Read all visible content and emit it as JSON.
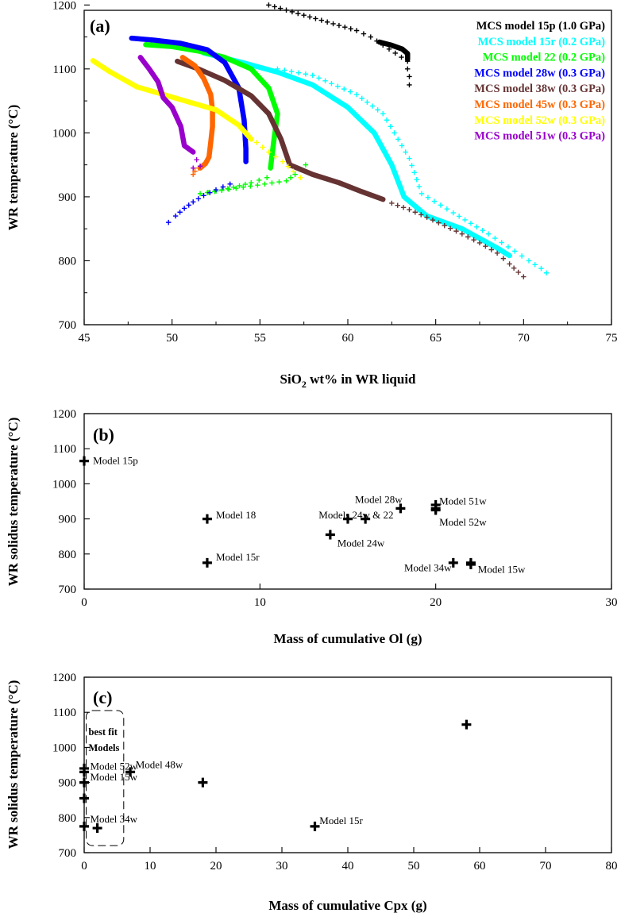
{
  "chart_data": [
    {
      "panel": "(a)",
      "type": "line",
      "xlabel_main": "SiO",
      "xlabel_sub": "2",
      "xlabel_rest": " wt% in WR liquid",
      "ylabel": "WR temperature (°C)",
      "xlim": [
        45,
        75
      ],
      "ylim": [
        700,
        1250
      ],
      "xticks": [
        45,
        50,
        55,
        60,
        65,
        70,
        75
      ],
      "yticks": [
        700,
        800,
        900,
        1000,
        1100,
        1200
      ],
      "legend_position": "top-right",
      "series": [
        {
          "name": "MCS model 15p (1.0 GPa)",
          "color": "#000000",
          "solid": [
            [
              61.8,
              1142
            ],
            [
              62.5,
              1137
            ],
            [
              63.1,
              1131
            ],
            [
              63.4,
              1124
            ],
            [
              63.4,
              1115
            ]
          ],
          "crosses": [
            [
              55.5,
              1200
            ],
            [
              56.5,
              1192
            ],
            [
              57.5,
              1184
            ],
            [
              58.5,
              1176
            ],
            [
              59.5,
              1168
            ],
            [
              60.5,
              1160
            ],
            [
              61.3,
              1150
            ],
            [
              63.4,
              1112
            ],
            [
              63.4,
              1100
            ],
            [
              63.5,
              1088
            ],
            [
              63.5,
              1075
            ]
          ]
        },
        {
          "name": "MCS model 15r (0.2 GPa)",
          "color": "#00ffff",
          "solid": [
            [
              51.8,
              1125
            ],
            [
              54,
              1110
            ],
            [
              56,
              1095
            ],
            [
              58,
              1075
            ],
            [
              60,
              1040
            ],
            [
              61.5,
              1000
            ],
            [
              62.5,
              950
            ],
            [
              63.2,
              900
            ],
            [
              64.5,
              870
            ],
            [
              66.5,
              850
            ],
            [
              68.5,
              820
            ],
            [
              69.2,
              808
            ]
          ],
          "crosses": [
            [
              56,
              1100
            ],
            [
              58,
              1090
            ],
            [
              60.5,
              1060
            ],
            [
              62,
              1030
            ],
            [
              63.5,
              960
            ],
            [
              64.2,
              905
            ],
            [
              66,
              875
            ],
            [
              68,
              842
            ],
            [
              69.5,
              815
            ],
            [
              70.3,
              800
            ],
            [
              71,
              788
            ],
            [
              71.3,
              781
            ]
          ]
        },
        {
          "name": "MCS model 22 (0.2 GPa)",
          "color": "#00ff00",
          "solid": [
            [
              48.5,
              1138
            ],
            [
              50,
              1135
            ],
            [
              51.5,
              1128
            ],
            [
              53,
              1118
            ],
            [
              54.5,
              1100
            ],
            [
              55.5,
              1070
            ],
            [
              56,
              1030
            ],
            [
              55.8,
              990
            ],
            [
              55.6,
              945
            ]
          ],
          "crosses": [
            [
              55.4,
              930
            ],
            [
              54.5,
              922
            ],
            [
              53.5,
              915
            ],
            [
              52.5,
              909
            ],
            [
              51.6,
              905
            ],
            [
              56.5,
              925
            ],
            [
              57,
              935
            ],
            [
              57.6,
              950
            ]
          ]
        },
        {
          "name": "MCS model 28w (0.3 GPa)",
          "color": "#0000ff",
          "solid": [
            [
              47.7,
              1148
            ],
            [
              49,
              1145
            ],
            [
              50.5,
              1140
            ],
            [
              52,
              1130
            ],
            [
              53,
              1110
            ],
            [
              53.8,
              1070
            ],
            [
              54.1,
              1020
            ],
            [
              54.2,
              975
            ],
            [
              54.2,
              955
            ]
          ],
          "crosses": [
            [
              53.3,
              920
            ],
            [
              52.5,
              911
            ],
            [
              51.8,
              902
            ],
            [
              51.2,
              892
            ],
            [
              50.7,
              882
            ],
            [
              50.2,
              870
            ],
            [
              49.8,
              860
            ]
          ]
        },
        {
          "name": "MCS model 38w (0.3 GPa)",
          "color": "#663333",
          "solid": [
            [
              50.3,
              1112
            ],
            [
              51.5,
              1100
            ],
            [
              53,
              1082
            ],
            [
              54.5,
              1058
            ],
            [
              55.5,
              1030
            ],
            [
              56.2,
              990
            ],
            [
              56.7,
              950
            ],
            [
              58,
              935
            ],
            [
              59.5,
              922
            ],
            [
              60.8,
              908
            ],
            [
              62,
              896
            ]
          ],
          "crosses": [
            [
              62.5,
              890
            ],
            [
              63.5,
              880
            ],
            [
              64.5,
              868
            ],
            [
              65.5,
              855
            ],
            [
              66.5,
              842
            ],
            [
              67.5,
              828
            ],
            [
              68.5,
              812
            ],
            [
              69.2,
              795
            ],
            [
              69.7,
              782
            ],
            [
              70,
              775
            ]
          ]
        },
        {
          "name": "MCS model 45w (0.3 GPa)",
          "color": "#ff6600",
          "solid": [
            [
              50.6,
              1118
            ],
            [
              51.3,
              1105
            ],
            [
              51.8,
              1085
            ],
            [
              52.2,
              1060
            ],
            [
              52.3,
              1035
            ],
            [
              52.3,
              1010
            ],
            [
              52.2,
              985
            ],
            [
              52.1,
              962
            ],
            [
              51.9,
              952
            ],
            [
              51.6,
              945
            ]
          ],
          "crosses": [
            [
              51.5,
              945
            ],
            [
              51.3,
              940
            ],
            [
              51.2,
              935
            ]
          ]
        },
        {
          "name": "MCS model 52w (0.3 GPa)",
          "color": "#ffff00",
          "solid": [
            [
              45.5,
              1113
            ],
            [
              46.5,
              1095
            ],
            [
              48,
              1072
            ],
            [
              49.5,
              1060
            ],
            [
              51,
              1048
            ],
            [
              52.5,
              1036
            ],
            [
              53.8,
              1012
            ],
            [
              54.5,
              990
            ]
          ],
          "crosses": [
            [
              54.8,
              985
            ],
            [
              55.5,
              970
            ],
            [
              56.3,
              955
            ],
            [
              56.9,
              940
            ],
            [
              57.3,
              930
            ]
          ]
        },
        {
          "name": "MCS model 51w (0.3 GPa)",
          "color": "#9900cc",
          "solid": [
            [
              48.2,
              1118
            ],
            [
              48.7,
              1100
            ],
            [
              49.2,
              1080
            ],
            [
              49.5,
              1055
            ],
            [
              50,
              1040
            ],
            [
              50.5,
              1010
            ],
            [
              50.7,
              980
            ],
            [
              51.2,
              970
            ]
          ],
          "crosses": [
            [
              51.4,
              958
            ],
            [
              51.6,
              948
            ],
            [
              51.2,
              945
            ]
          ]
        }
      ]
    },
    {
      "panel": "(b)",
      "type": "scatter",
      "xlabel": "Mass of cumulative Ol (g)",
      "ylabel": "WR solidus temperature (°C)",
      "xlim": [
        0,
        30
      ],
      "ylim": [
        700,
        1200
      ],
      "xticks": [
        0,
        10,
        20,
        30
      ],
      "yticks": [
        700,
        800,
        900,
        1000,
        1100,
        1200
      ],
      "points": [
        [
          0,
          1065
        ],
        [
          7,
          900
        ],
        [
          7,
          775
        ],
        [
          14,
          855
        ],
        [
          15,
          900
        ],
        [
          16,
          900
        ],
        [
          18,
          930
        ],
        [
          20,
          940
        ],
        [
          20,
          930
        ],
        [
          20,
          925
        ],
        [
          21,
          775
        ],
        [
          22,
          775
        ],
        [
          22,
          770
        ]
      ],
      "annotations": [
        {
          "text": "Model 15p",
          "x": 0.5,
          "y": 1065,
          "anchor": "start"
        },
        {
          "text": "Model 18",
          "x": 7.5,
          "y": 910,
          "anchor": "start"
        },
        {
          "text": "Model 15r",
          "x": 7.5,
          "y": 790,
          "anchor": "start"
        },
        {
          "text": "Models 24w & 22",
          "x": 17.6,
          "y": 910,
          "anchor": "end"
        },
        {
          "text": "Model 24w",
          "x": 14.4,
          "y": 830,
          "anchor": "start"
        },
        {
          "text": "Model 28w",
          "x": 18.1,
          "y": 955,
          "anchor": "end"
        },
        {
          "text": "Model 51w",
          "x": 20.2,
          "y": 950,
          "anchor": "start"
        },
        {
          "text": "Model 52w",
          "x": 20.2,
          "y": 890,
          "anchor": "start"
        },
        {
          "text": "Model 34w",
          "x": 20.9,
          "y": 760,
          "anchor": "end"
        },
        {
          "text": "Model 15w",
          "x": 22.4,
          "y": 755,
          "anchor": "start"
        }
      ]
    },
    {
      "panel": "(c)",
      "type": "scatter",
      "xlabel": "Mass of cumulative Cpx (g)",
      "ylabel": "WR solidus temperature (°C)",
      "xlim": [
        0,
        80
      ],
      "ylim": [
        700,
        1200
      ],
      "xticks": [
        0,
        10,
        20,
        30,
        40,
        50,
        60,
        70,
        80
      ],
      "yticks": [
        700,
        800,
        900,
        1000,
        1100,
        1200
      ],
      "points": [
        [
          0,
          940
        ],
        [
          0,
          930
        ],
        [
          0,
          900
        ],
        [
          0,
          855
        ],
        [
          0,
          775
        ],
        [
          2,
          770
        ],
        [
          7,
          930
        ],
        [
          18,
          900
        ],
        [
          35,
          775
        ],
        [
          58,
          1065
        ]
      ],
      "annotations": [
        {
          "text": "Model 52w",
          "x": 0.9,
          "y": 945,
          "anchor": "start"
        },
        {
          "text": "Model 48w",
          "x": 7.8,
          "y": 950,
          "anchor": "start"
        },
        {
          "text": "Model 15w",
          "x": 0.9,
          "y": 915,
          "anchor": "start"
        },
        {
          "text": "Model 34w",
          "x": 0.9,
          "y": 795,
          "anchor": "start"
        },
        {
          "text": "Model 15r",
          "x": 35.7,
          "y": 790,
          "anchor": "start"
        }
      ],
      "best_fit_box": {
        "label_line1": "best fit",
        "label_line2": "Models",
        "x0": 0.3,
        "x1": 6,
        "y0": 720,
        "y1": 1105
      }
    }
  ]
}
